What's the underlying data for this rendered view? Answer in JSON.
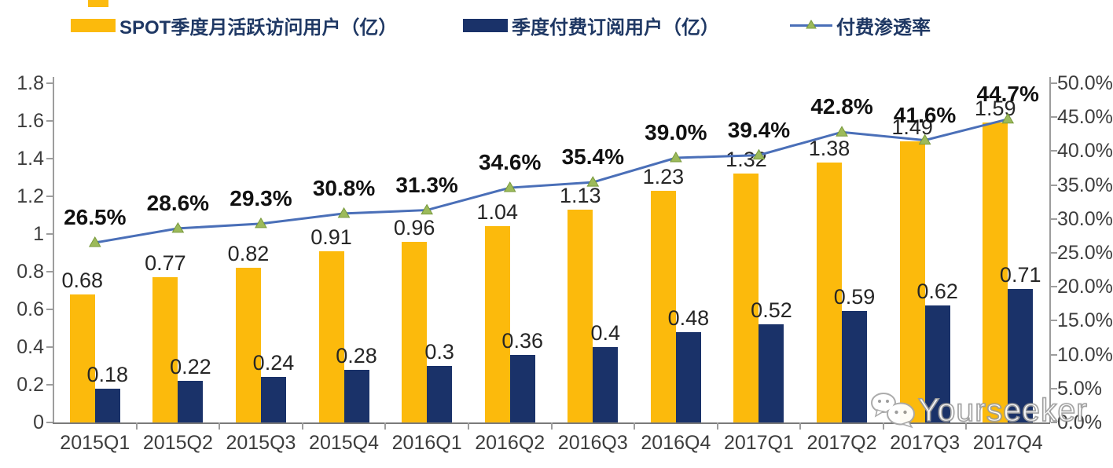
{
  "legend": {
    "mau": {
      "label": "SPOT季度月活跃访问用户（亿）",
      "color": "#fcba0c"
    },
    "subs": {
      "label": "季度付费订阅用户（亿）",
      "color": "#1a3269"
    },
    "rate": {
      "label": "付费渗透率",
      "color": "#4a6fb8",
      "marker_color": "#9cba5a"
    }
  },
  "watermark": {
    "text": "Yourseeker",
    "icon": "wechat-icon"
  },
  "chart_data": {
    "type": "bar+line combo",
    "title": "",
    "categories": [
      "2015Q1",
      "2015Q2",
      "2015Q3",
      "2015Q4",
      "2016Q1",
      "2016Q2",
      "2016Q3",
      "2016Q4",
      "2017Q1",
      "2017Q2",
      "2017Q3",
      "2017Q4"
    ],
    "series": [
      {
        "name": "SPOT季度月活跃访问用户（亿）",
        "type": "bar",
        "axis": "left",
        "color": "#fcba0c",
        "values": [
          0.68,
          0.77,
          0.82,
          0.91,
          0.96,
          1.04,
          1.13,
          1.23,
          1.32,
          1.38,
          1.49,
          1.59
        ],
        "labels": [
          "0.68",
          "0.77",
          "0.82",
          "0.91",
          "0.96",
          "1.04",
          "1.13",
          "1.23",
          "1.32",
          "1.38",
          "1.49",
          "1.59"
        ]
      },
      {
        "name": "季度付费订阅用户（亿）",
        "type": "bar",
        "axis": "left",
        "color": "#1a3269",
        "values": [
          0.18,
          0.22,
          0.24,
          0.28,
          0.3,
          0.36,
          0.4,
          0.48,
          0.52,
          0.59,
          0.62,
          0.71
        ],
        "labels": [
          "0.18",
          "0.22",
          "0.24",
          "0.28",
          "0.3",
          "0.36",
          "0.4",
          "0.48",
          "0.52",
          "0.59",
          "0.62",
          "0.71"
        ]
      },
      {
        "name": "付费渗透率",
        "type": "line",
        "axis": "right",
        "color": "#4a6fb8",
        "marker": "triangle-up",
        "marker_fill": "#9cba5a",
        "marker_stroke": "#78993c",
        "values": [
          26.5,
          28.6,
          29.3,
          30.8,
          31.3,
          34.6,
          35.4,
          39.0,
          39.4,
          42.8,
          41.6,
          44.7
        ],
        "labels": [
          "26.5%",
          "28.6%",
          "29.3%",
          "30.8%",
          "31.3%",
          "34.6%",
          "35.4%",
          "39.0%",
          "39.4%",
          "42.8%",
          "41.6%",
          "44.7%"
        ]
      }
    ],
    "left_axis": {
      "min": 0,
      "max": 1.8,
      "step": 0.2,
      "ticks": [
        "0",
        "0.2",
        "0.4",
        "0.6",
        "0.8",
        "1",
        "1.2",
        "1.4",
        "1.6",
        "1.8"
      ]
    },
    "right_axis": {
      "min": 0,
      "max": 50,
      "step": 5,
      "ticks": [
        "0.0%",
        "5.0%",
        "10.0%",
        "15.0%",
        "20.0%",
        "25.0%",
        "30.0%",
        "35.0%",
        "40.0%",
        "45.0%",
        "50.0%"
      ]
    },
    "grid": false,
    "legend_position": "top"
  }
}
